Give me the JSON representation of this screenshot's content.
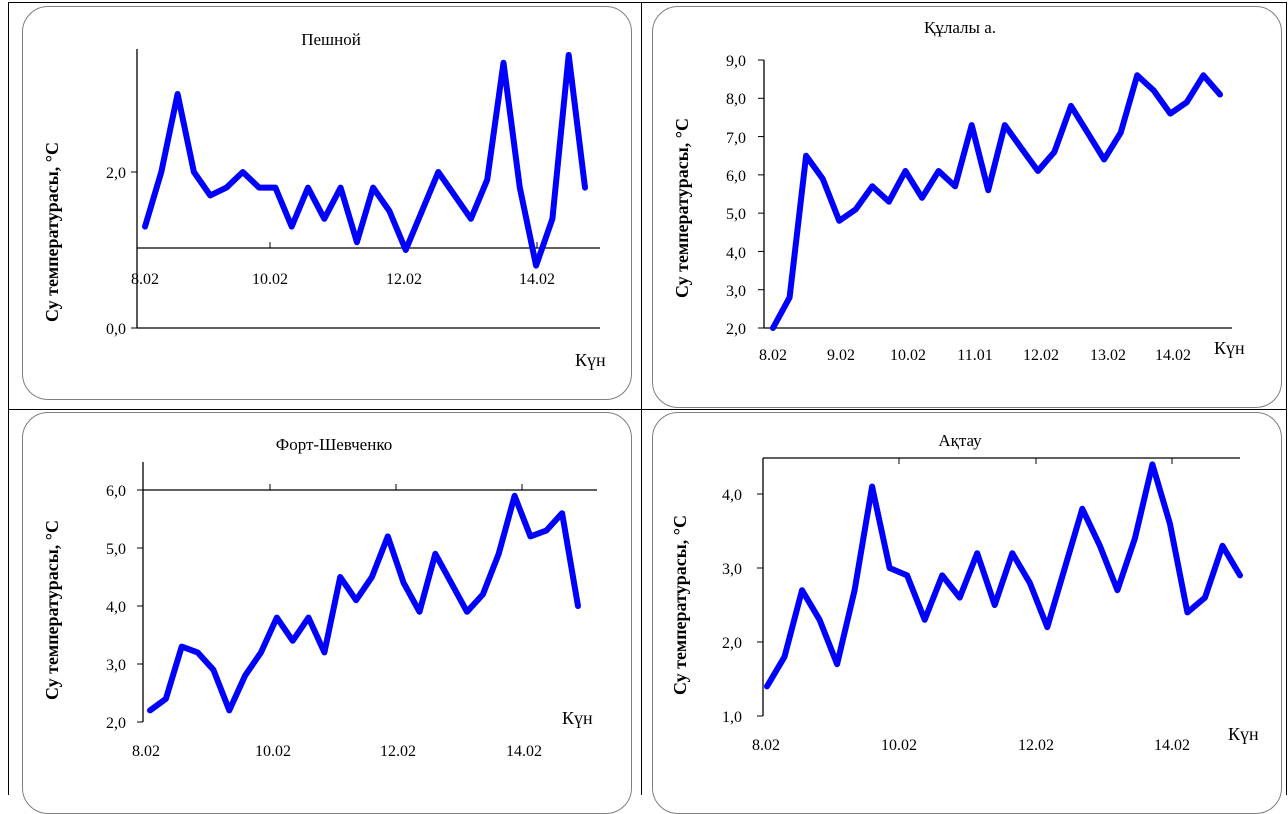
{
  "chart_data": [
    {
      "type": "line",
      "title": "Пешной",
      "xlabel": "Күн",
      "ylabel": "Су температурасы, °C",
      "y_ticks": [
        "0,0",
        "2,0"
      ],
      "x_ticks": [
        "8.02",
        "10.02",
        "12.02",
        "14.02"
      ],
      "series_color": "#0000ff",
      "series": [
        {
          "values": [
            1.3,
            2.0,
            3.0,
            2.0,
            1.7,
            1.8,
            2.0,
            1.8,
            1.8,
            1.3,
            1.8,
            1.4,
            1.8,
            1.1,
            1.8,
            1.5,
            1.0,
            1.5,
            2.0,
            1.7,
            1.4,
            1.9,
            3.4,
            1.8,
            0.8,
            1.4,
            3.5,
            1.8
          ]
        }
      ]
    },
    {
      "type": "line",
      "title": "Құлалы а.",
      "xlabel": "Күн",
      "ylabel": "Су температурасы, °C",
      "y_ticks": [
        "2,0",
        "3,0",
        "4,0",
        "5,0",
        "6,0",
        "7,0",
        "8,0",
        "9,0"
      ],
      "x_ticks": [
        "8.02",
        "9.02",
        "10.02",
        "11.01",
        "12.02",
        "13.02",
        "14.02"
      ],
      "ylim": [
        2.0,
        9.0
      ],
      "series_color": "#0000ff",
      "series": [
        {
          "values": [
            2.0,
            2.8,
            6.5,
            5.9,
            4.8,
            5.1,
            5.7,
            5.3,
            6.1,
            5.4,
            6.1,
            5.7,
            7.3,
            5.6,
            7.3,
            6.7,
            6.1,
            6.6,
            7.8,
            7.1,
            6.4,
            7.1,
            8.6,
            8.2,
            7.6,
            7.9,
            8.6,
            8.1
          ]
        }
      ]
    },
    {
      "type": "line",
      "title": "Форт-Шевченко",
      "xlabel": "Күн",
      "ylabel": "Су температурасы, °C",
      "y_ticks": [
        "2,0",
        "3,0",
        "4,0",
        "5,0",
        "6,0"
      ],
      "x_ticks": [
        "8.02",
        "10.02",
        "12.02",
        "14.02"
      ],
      "ylim": [
        2.0,
        6.0
      ],
      "series_color": "#0000ff",
      "series": [
        {
          "values": [
            2.2,
            2.4,
            3.3,
            3.2,
            2.9,
            2.2,
            2.8,
            3.2,
            3.8,
            3.4,
            3.8,
            3.2,
            4.5,
            4.1,
            4.5,
            5.2,
            4.4,
            3.9,
            4.9,
            4.4,
            3.9,
            4.2,
            4.9,
            5.9,
            5.2,
            5.3,
            5.6,
            4.0
          ]
        }
      ]
    },
    {
      "type": "line",
      "title": "Ақтау",
      "xlabel": "Күн",
      "ylabel": "Су температурасы, °C",
      "y_ticks": [
        "1,0",
        "2,0",
        "3,0",
        "4,0"
      ],
      "x_ticks": [
        "8.02",
        "10.02",
        "12.02",
        "14.02"
      ],
      "ylim": [
        1.0,
        4.5
      ],
      "series_color": "#0000ff",
      "series": [
        {
          "values": [
            1.4,
            1.8,
            2.7,
            2.3,
            1.7,
            2.7,
            4.1,
            3.0,
            2.9,
            2.3,
            2.9,
            2.6,
            3.2,
            2.5,
            3.2,
            2.8,
            2.2,
            3.0,
            3.8,
            3.3,
            2.7,
            3.4,
            4.4,
            3.6,
            2.4,
            2.6,
            3.3,
            2.9
          ]
        }
      ]
    }
  ]
}
